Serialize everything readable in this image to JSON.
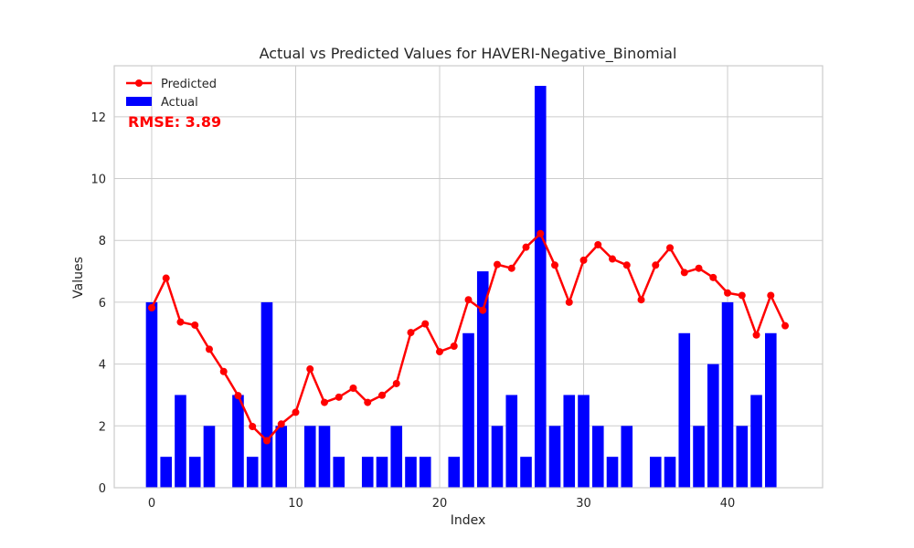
{
  "chart_data": {
    "type": "bar",
    "title": "Actual vs Predicted Values for HAVERI-Negative_Binomial",
    "xlabel": "Index",
    "ylabel": "Values",
    "xlim": [
      -2.6,
      46.6
    ],
    "ylim": [
      0,
      13.65
    ],
    "xticks": [
      0,
      10,
      20,
      30,
      40
    ],
    "yticks": [
      0,
      2,
      4,
      6,
      8,
      10,
      12
    ],
    "grid": true,
    "legend_position": "top-left",
    "annotation": "RMSE: 3.89",
    "colors": {
      "actual": "#0000ff",
      "predicted": "#ff0000",
      "annotation": "#ff0000",
      "grid": "#cccccc",
      "frame": "#cccccc"
    },
    "series": [
      {
        "name": "Actual",
        "type": "bar",
        "x": [
          0,
          1,
          2,
          3,
          4,
          5,
          6,
          7,
          8,
          9,
          10,
          11,
          12,
          13,
          14,
          15,
          16,
          17,
          18,
          19,
          20,
          21,
          22,
          23,
          24,
          25,
          26,
          27,
          28,
          29,
          30,
          31,
          32,
          33,
          34,
          35,
          36,
          37,
          38,
          39,
          40,
          41,
          42,
          43,
          44
        ],
        "values": [
          6,
          1,
          3,
          1,
          2,
          0,
          3,
          1,
          6,
          2,
          0,
          2,
          2,
          1,
          0,
          1,
          1,
          2,
          1,
          1,
          0,
          1,
          5,
          7,
          2,
          3,
          1,
          13,
          2,
          3,
          3,
          2,
          1,
          2,
          0,
          1,
          1,
          5,
          2,
          4,
          6,
          2,
          3,
          5,
          0
        ]
      },
      {
        "name": "Predicted",
        "type": "line",
        "x": [
          0,
          1,
          2,
          3,
          4,
          5,
          6,
          7,
          8,
          9,
          10,
          11,
          12,
          13,
          14,
          15,
          16,
          17,
          18,
          19,
          20,
          21,
          22,
          23,
          24,
          25,
          26,
          27,
          28,
          29,
          30,
          31,
          32,
          33,
          34,
          35,
          36,
          37,
          38,
          39,
          40,
          41,
          42,
          43,
          44
        ],
        "values": [
          5.82,
          6.78,
          5.36,
          5.26,
          4.48,
          3.76,
          2.98,
          1.98,
          1.52,
          2.06,
          2.44,
          3.84,
          2.76,
          2.93,
          3.22,
          2.76,
          2.99,
          3.37,
          5.02,
          5.3,
          4.4,
          4.58,
          6.08,
          5.74,
          7.22,
          7.1,
          7.78,
          8.22,
          7.2,
          6.0,
          7.36,
          7.86,
          7.4,
          7.2,
          6.08,
          7.2,
          7.76,
          6.96,
          7.1,
          6.8,
          6.3,
          6.22,
          4.94,
          6.22,
          5.24
        ]
      }
    ]
  }
}
